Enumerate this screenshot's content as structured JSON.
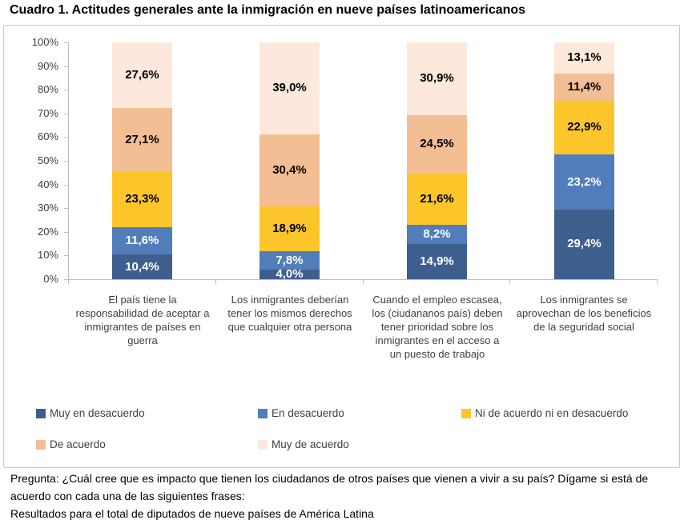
{
  "title": "Cuadro 1. Actitudes generales ante la inmigración en nueve países latinoamericanos",
  "chart_data": {
    "type": "bar",
    "stacked": true,
    "title": "Cuadro 1. Actitudes generales ante la inmigración en nueve países latinoamericanos",
    "categories": [
      "El país tiene la responsabilidad de aceptar a inmigrantes de países en guerra",
      "Los inmigrantes deberían tener los mismos derechos que cualquier otra persona",
      "Cuando el empleo escasea, los (ciudananos país) deben tener prioridad sobre los inmigrantes en el acceso a un puesto de trabajo",
      "Los inmigrantes se aprovechan de los beneficios de la seguridad social"
    ],
    "series": [
      {
        "name": "Muy en desacuerdo",
        "color": "#3E5F8E",
        "label_color": "#FFFFFF",
        "values": [
          10.4,
          4.0,
          14.9,
          29.4
        ]
      },
      {
        "name": "En desacuerdo",
        "color": "#517EBA",
        "label_color": "#FFFFFF",
        "values": [
          11.6,
          7.8,
          8.2,
          23.2
        ]
      },
      {
        "name": "Ni de acuerdo ni en desacuerdo",
        "color": "#FCC62B",
        "label_color": "#000000",
        "values": [
          23.3,
          18.9,
          21.6,
          22.9
        ]
      },
      {
        "name": "De acuerdo",
        "color": "#F3BE94",
        "label_color": "#000000",
        "values": [
          27.1,
          30.4,
          24.5,
          11.4
        ]
      },
      {
        "name": "Muy de acuerdo",
        "color": "#FCE9DC",
        "label_color": "#000000",
        "values": [
          27.6,
          39.0,
          30.9,
          13.1
        ]
      }
    ],
    "value_label_format": "one-decimal-comma-percent",
    "xlabel": "",
    "ylabel": "",
    "ylim": [
      0,
      100
    ],
    "y_ticks": [
      "0%",
      "10%",
      "20%",
      "30%",
      "40%",
      "50%",
      "60%",
      "70%",
      "80%",
      "90%",
      "100%"
    ],
    "grid": false,
    "legend_position": "bottom"
  },
  "footer": {
    "question": "Pregunta: ¿Cuál cree que es impacto que tienen los ciudadanos de otros países que vienen a vivir a su país? Dígame si está de acuerdo con cada una de las siguientes frases:",
    "results": "Resultados para el total de diputados de nueve países de América Latina"
  }
}
